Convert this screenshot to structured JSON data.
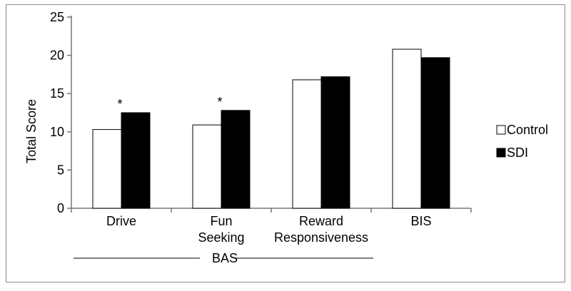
{
  "chart_data": {
    "type": "bar",
    "categories": [
      "Drive",
      "Fun\nSeeking",
      "Reward\nResponsiveness",
      "BIS"
    ],
    "series": [
      {
        "name": "Control",
        "values": [
          10.3,
          10.9,
          16.8,
          20.8
        ],
        "color": "#ffffff"
      },
      {
        "name": "SDI",
        "values": [
          12.5,
          12.8,
          17.2,
          19.7
        ],
        "color": "#000000"
      }
    ],
    "ylabel": "Total Score",
    "ylim": [
      0,
      25
    ],
    "yticks": [
      0,
      5,
      10,
      15,
      20,
      25
    ],
    "significance": [
      "*",
      "*",
      "",
      ""
    ],
    "group_label": "BAS",
    "legend_position": "right",
    "grid": false
  }
}
